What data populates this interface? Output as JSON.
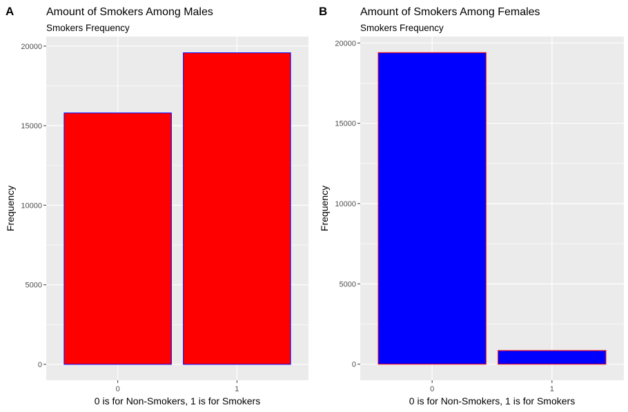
{
  "chart_data": [
    {
      "panel_label": "A",
      "type": "bar",
      "title": "Amount of Smokers Among Males",
      "subtitle": "Smokers Frequency",
      "xlabel": "0 is for Non-Smokers, 1 is for Smokers",
      "ylabel": "Frequency",
      "categories": [
        "0",
        "1"
      ],
      "values": [
        15800,
        19580
      ],
      "ylim": [
        -1000,
        20600
      ],
      "yticks": [
        0,
        5000,
        10000,
        15000,
        20000
      ],
      "ytick_labels": [
        "0",
        "5000",
        "10000",
        "15000",
        "20000"
      ],
      "grid": true,
      "fill_color": "#ff0000",
      "outline_color": "#0000ff",
      "panel_background": "#ebebeb",
      "gridline_color": "#ffffff"
    },
    {
      "panel_label": "B",
      "type": "bar",
      "title": "Amount of Smokers Among Females",
      "subtitle": "Smokers Frequency",
      "xlabel": "0 is for Non-Smokers, 1 is for Smokers",
      "ylabel": "Frequency",
      "categories": [
        "0",
        "1"
      ],
      "values": [
        19400,
        850
      ],
      "ylim": [
        -1000,
        20400
      ],
      "yticks": [
        0,
        5000,
        10000,
        15000,
        20000
      ],
      "ytick_labels": [
        "0",
        "5000",
        "10000",
        "15000",
        "20000"
      ],
      "grid": true,
      "fill_color": "#0000ff",
      "outline_color": "#ff0000",
      "panel_background": "#ebebeb",
      "gridline_color": "#ffffff"
    }
  ]
}
